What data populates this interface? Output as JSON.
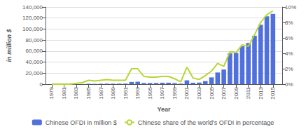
{
  "chart_data": {
    "type": "bar",
    "xlabel": "Year",
    "ylabel": "in million $",
    "x": [
      1979,
      1980,
      1981,
      1982,
      1983,
      1984,
      1985,
      1986,
      1987,
      1988,
      1989,
      1990,
      1991,
      1992,
      1993,
      1994,
      1995,
      1996,
      1997,
      1998,
      1999,
      2000,
      2001,
      2002,
      2003,
      2004,
      2005,
      2006,
      2007,
      2008,
      2009,
      2010,
      2011,
      2012,
      2013,
      2014,
      2015
    ],
    "series": [
      {
        "name": "Chinese OFDI in million $",
        "type": "bar",
        "values": [
          0,
          0,
          0,
          44,
          0,
          134,
          629,
          450,
          645,
          850,
          780,
          830,
          913,
          4000,
          4400,
          2000,
          2000,
          2114,
          2562,
          2634,
          1774,
          916,
          6885,
          2518,
          2855,
          5498,
          12261,
          21160,
          26506,
          55907,
          56530,
          68811,
          74654,
          87804,
          107844,
          123120,
          127560
        ]
      },
      {
        "name": "Chinese share of the world's OFDI in percentage",
        "type": "line",
        "axis": "y2",
        "values": [
          0,
          0,
          0,
          0,
          0.1,
          0.2,
          0.5,
          0.4,
          0.5,
          0.6,
          0.5,
          0.5,
          0.5,
          2.0,
          2.0,
          1.0,
          0.9,
          0.9,
          1.0,
          1.0,
          0.7,
          0.3,
          2.2,
          0.8,
          0.6,
          1.1,
          1.7,
          2.7,
          2.3,
          4.2,
          4.1,
          5.1,
          4.9,
          6.4,
          8.0,
          9.0,
          9.5
        ]
      }
    ],
    "xlim": [
      1978,
      2016.5
    ],
    "xticks": [
      1979,
      1981,
      1983,
      1985,
      1987,
      1989,
      1991,
      1993,
      1995,
      1997,
      1999,
      2001,
      2003,
      2005,
      2007,
      2009,
      2011,
      2013,
      2015
    ],
    "ylim": [
      0,
      140000
    ],
    "yticks": [
      0,
      {
        "value": 20000,
        "label": "20,000"
      },
      {
        "value": 40000,
        "label": "40,000"
      },
      {
        "value": 60000,
        "label": "60,000"
      },
      {
        "value": 80000,
        "label": "80,000"
      },
      {
        "value": 100000,
        "label": "100,000"
      },
      {
        "value": 120000,
        "label": "120,000"
      },
      {
        "value": 140000,
        "label": "140,000"
      }
    ],
    "y2lim": [
      0,
      10
    ],
    "y2ticks": [
      {
        "value": 0,
        "label": "0%"
      },
      {
        "value": 2,
        "label": "2%"
      },
      {
        "value": 4,
        "label": "4%"
      },
      {
        "value": 6,
        "label": "6%"
      },
      {
        "value": 8,
        "label": "8%"
      },
      {
        "value": 10,
        "label": "10%"
      }
    ],
    "grid": true,
    "legend": "bottom"
  }
}
